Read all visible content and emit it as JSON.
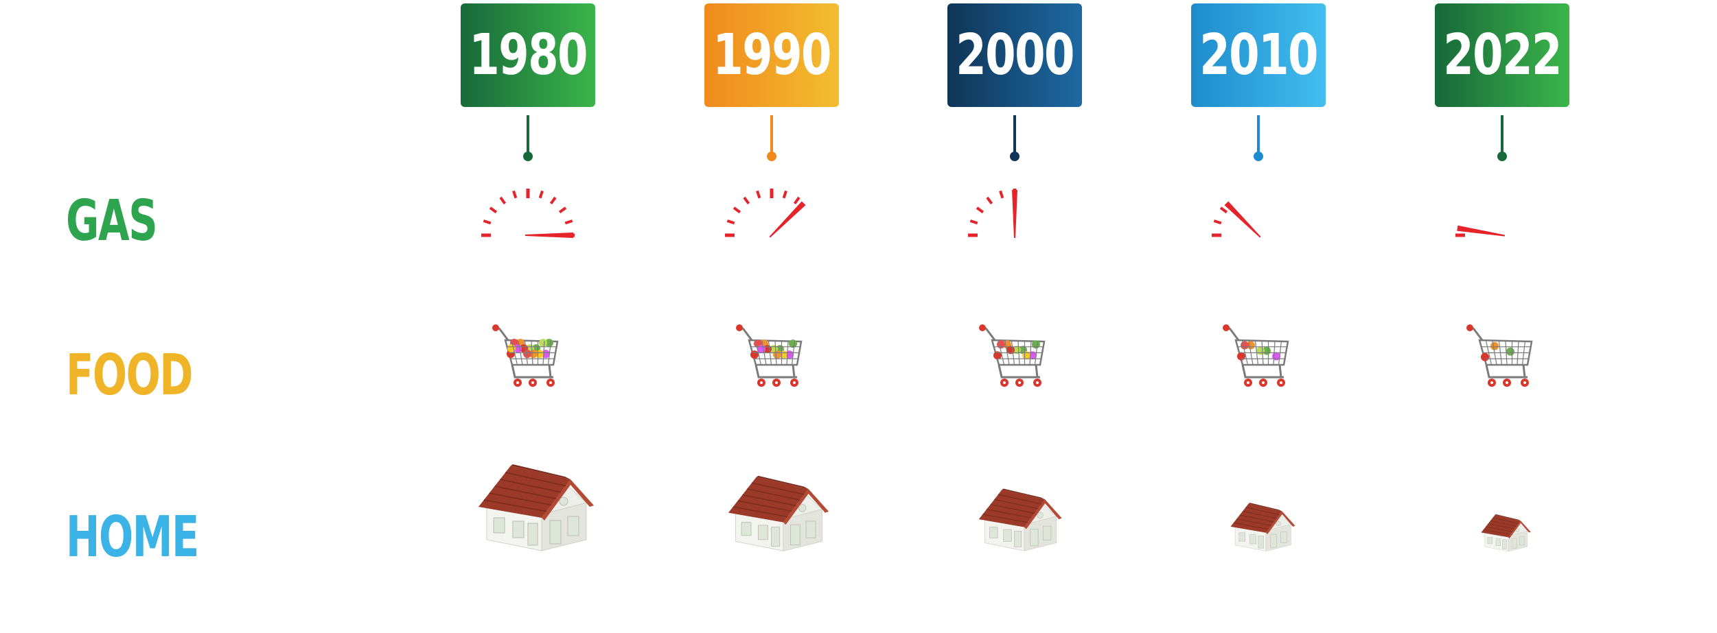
{
  "rows": {
    "gas": "GAS",
    "food": "FOOD",
    "home": "HOME"
  },
  "row_colors": {
    "gas": "#2fa44f",
    "food": "#f0b429",
    "home": "#3bb3e6"
  },
  "years": [
    {
      "label": "1980",
      "color_from": "#17693a",
      "color_to": "#3bb54a",
      "gas_level": 1.0,
      "food_level": 1.0,
      "home_scale": 1.0
    },
    {
      "label": "1990",
      "color_from": "#f08a1c",
      "color_to": "#f3bd30",
      "gas_level": 0.75,
      "food_level": 0.82,
      "home_scale": 0.87
    },
    {
      "label": "2000",
      "color_from": "#0f3557",
      "color_to": "#1d6aa4",
      "gas_level": 0.5,
      "food_level": 0.62,
      "home_scale": 0.72
    },
    {
      "label": "2010",
      "color_from": "#1e8ccc",
      "color_to": "#43bdef",
      "gas_level": 0.25,
      "food_level": 0.42,
      "home_scale": 0.56
    },
    {
      "label": "2022",
      "color_from": "#17693a",
      "color_to": "#3bb54a",
      "gas_level": 0.05,
      "food_level": 0.22,
      "home_scale": 0.43
    }
  ],
  "icons": {
    "gas": "fuel-gauge-icon",
    "food": "shopping-cart-icon",
    "home": "house-icon"
  },
  "gauge_color": "#e5232b"
}
